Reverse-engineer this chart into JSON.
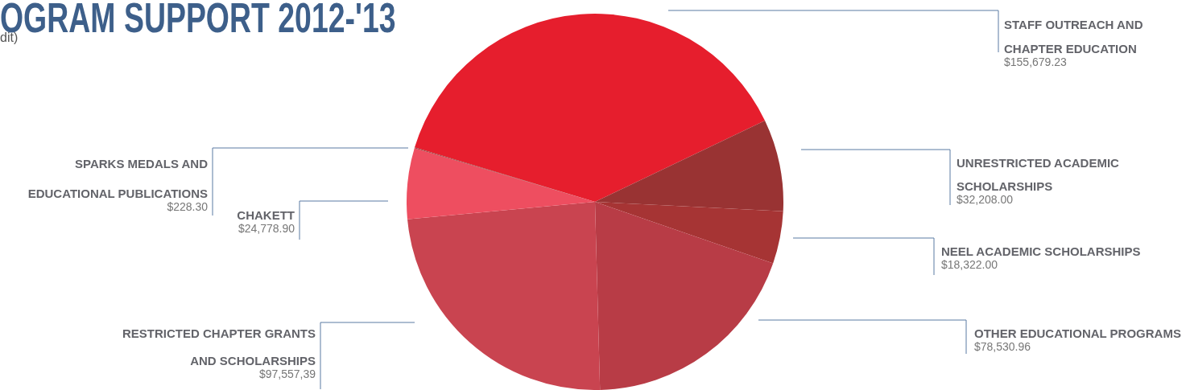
{
  "chart_data": {
    "type": "pie",
    "title": "OGRAM SUPPORT 2012-'13",
    "subtitle": "dit)",
    "categories": [
      "STAFF OUTREACH AND CHAPTER EDUCATION",
      "UNRESTRICTED ACADEMIC SCHOLARSHIPS",
      "NEEL ACADEMIC SCHOLARSHIPS",
      "OTHER EDUCATIONAL PROGRAMS",
      "RESTRICTED CHAPTER GRANTS AND SCHOLARSHIPS",
      "CHAKETT",
      "SPARKS MEDALS AND EDUCATIONAL PUBLICATIONS"
    ],
    "values": [
      155679.23,
      32208.0,
      18322.0,
      78530.96,
      97557.39,
      24778.9,
      228.3
    ],
    "value_labels": [
      "$155,679.23",
      "$32,208.00",
      "$18,322.00",
      "$78,530.96",
      "$97,557,39",
      "$24,778.90",
      "$228.30"
    ],
    "colors": [
      "#e61e2d",
      "#993333",
      "#a63434",
      "#b83c46",
      "#c94450",
      "#ee4e60",
      "#a03a3a"
    ],
    "legend": false
  }
}
